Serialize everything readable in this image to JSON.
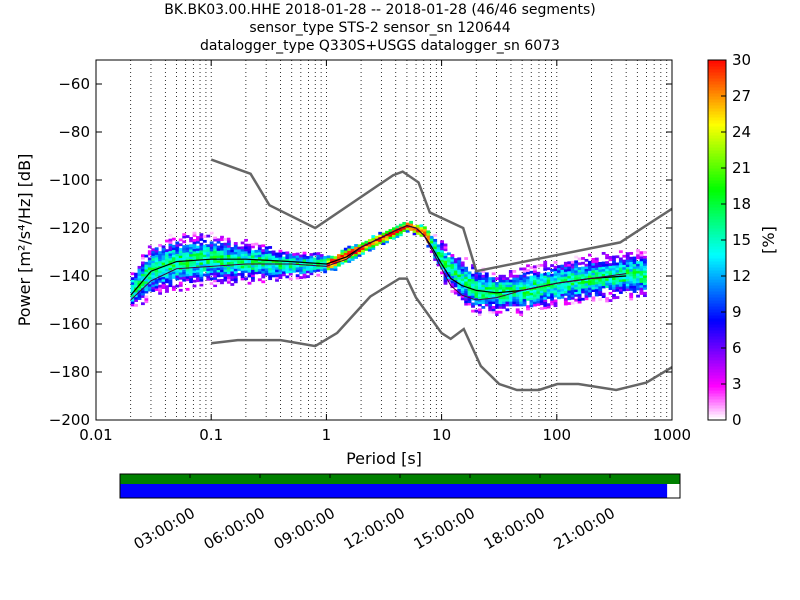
{
  "chart_data": {
    "type": "heatmap",
    "title_lines": [
      "BK.BK03.00.HHE   2018-01-28 -- 2018-01-28  (46/46 segments)",
      "sensor_type STS-2 sensor_sn 120644",
      "datalogger_type Q330S+USGS datalogger_sn 6073"
    ],
    "xlabel": "Period [s]",
    "ylabel": "Power [m²/s⁴/Hz] [dB]",
    "xscale": "log",
    "xlim": [
      0.01,
      1000
    ],
    "ylim": [
      -200,
      -50
    ],
    "x_ticks": [
      0.01,
      0.1,
      1,
      10,
      100,
      1000
    ],
    "x_tick_labels": [
      "0.01",
      "0.1",
      "1",
      "10",
      "100",
      "1000"
    ],
    "y_ticks": [
      -200,
      -180,
      -160,
      -140,
      -120,
      -100,
      -80,
      -60
    ],
    "y_tick_labels": [
      "−200",
      "−180",
      "−160",
      "−140",
      "−120",
      "−100",
      "−80",
      "−60"
    ],
    "grid": "dotted-x",
    "colorbar": {
      "label": "[%]",
      "min": 0,
      "max": 30,
      "ticks": [
        "0",
        "3",
        "6",
        "9",
        "12",
        "15",
        "18",
        "21",
        "24",
        "27",
        "30"
      ],
      "colormap": [
        "#ffffff",
        "#ff00ff",
        "#8000ff",
        "#0000ff",
        "#0080ff",
        "#00ffff",
        "#00ff80",
        "#00ff00",
        "#80ff00",
        "#ffff00",
        "#ff8000",
        "#ff0000"
      ]
    },
    "noise_models": [
      {
        "name": "high",
        "x": [
          0.1,
          0.22,
          0.32,
          0.8,
          3.8,
          4.6,
          6.3,
          7.9,
          15.4,
          20,
          354.8,
          1000
        ],
        "y": [
          -91.5,
          -97.4,
          -110.5,
          -120,
          -98,
          -96.5,
          -101,
          -113.5,
          -120,
          -138,
          -126,
          -112
        ]
      },
      {
        "name": "low",
        "x": [
          0.1,
          0.17,
          0.4,
          0.8,
          1.24,
          2.4,
          4.3,
          5,
          6,
          10,
          12,
          15.6,
          21.9,
          31.6,
          45,
          70,
          101,
          154,
          328,
          600,
          1000
        ],
        "y": [
          -168,
          -166.7,
          -166.7,
          -169.2,
          -163.7,
          -148.6,
          -141.1,
          -141.1,
          -149,
          -163.8,
          -166.2,
          -162.1,
          -177.5,
          -185,
          -187.5,
          -187.5,
          -185,
          -185,
          -187.5,
          -184.4,
          -178
        ]
      }
    ],
    "psd_mean": {
      "x": [
        0.02,
        0.03,
        0.05,
        0.1,
        0.2,
        0.5,
        1,
        1.5,
        2,
        3,
        4,
        5,
        6,
        7,
        8,
        10,
        12,
        15,
        20,
        30,
        50,
        100,
        200,
        400
      ],
      "y": [
        -148,
        -138,
        -134,
        -133,
        -133,
        -134,
        -135,
        -132,
        -128,
        -124,
        -121,
        -119,
        -120,
        -123,
        -127,
        -135,
        -141,
        -144,
        -146,
        -147,
        -146,
        -143,
        -141,
        -140
      ]
    },
    "psd_mode": {
      "x": [
        0.02,
        0.03,
        0.05,
        0.1,
        0.2,
        0.5,
        1,
        1.5,
        2,
        3,
        4,
        5,
        6,
        7,
        8,
        10,
        12,
        15,
        20,
        30,
        50,
        100,
        200,
        400
      ],
      "y": [
        -150,
        -142,
        -137,
        -136,
        -135,
        -135,
        -136,
        -133,
        -128,
        -124,
        -121,
        -119,
        -120,
        -123,
        -128,
        -137,
        -144,
        -148,
        -150,
        -149,
        -146,
        -143,
        -141,
        -139
      ]
    },
    "histogram_bands": [
      {
        "x": [
          0.02,
          0.03,
          0.05,
          0.1,
          0.2,
          0.5,
          1,
          2,
          3,
          5,
          7,
          10,
          15,
          20,
          30,
          50,
          100,
          200,
          300,
          600
        ],
        "center": [
          -146,
          -137,
          -134,
          -133,
          -134,
          -135,
          -135,
          -128,
          -124,
          -119,
          -122,
          -134,
          -142,
          -146,
          -147,
          -146,
          -143,
          -141,
          -140,
          -139
        ],
        "spread": [
          8,
          12,
          12,
          11,
          9,
          6,
          4,
          2.5,
          2.5,
          2,
          3,
          8,
          10,
          10,
          9,
          10,
          10,
          10,
          10,
          10
        ]
      }
    ],
    "time_bar": {
      "tick_labels": [
        "03:00:00",
        "06:00:00",
        "09:00:00",
        "12:00:00",
        "15:00:00",
        "18:00:00",
        "21:00:00"
      ],
      "coverage_fraction": 0.977,
      "data_color": "#0000ff",
      "segment_color": "#008000"
    }
  }
}
